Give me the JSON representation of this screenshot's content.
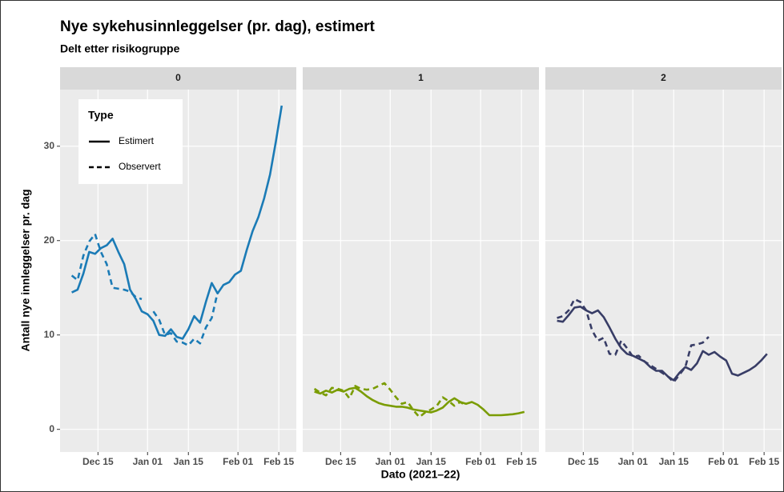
{
  "chart_data": {
    "type": "line",
    "title": "Nye sykehusinnleggelser (pr. dag), estimert",
    "subtitle": "Delt etter risikogruppe",
    "x_label": "Dato (2021–22)",
    "y_label": "Antall nye innleggelser pr. dag",
    "legend_title": "Type",
    "grid": true,
    "xlim": [
      "2021-12-02",
      "2022-02-21"
    ],
    "xticks": [
      {
        "value": "2021-12-15",
        "label": "Dec 15"
      },
      {
        "value": "2022-01-01",
        "label": "Jan 01"
      },
      {
        "value": "2022-01-15",
        "label": "Jan 15"
      },
      {
        "value": "2022-02-01",
        "label": "Feb 01"
      },
      {
        "value": "2022-02-15",
        "label": "Feb 15"
      }
    ],
    "ylim": [
      -2.4,
      36
    ],
    "yticks": [
      0,
      10,
      20,
      30
    ],
    "x": [
      "2021-12-06",
      "2021-12-08",
      "2021-12-10",
      "2021-12-12",
      "2021-12-14",
      "2021-12-16",
      "2021-12-18",
      "2021-12-20",
      "2021-12-22",
      "2021-12-24",
      "2021-12-26",
      "2021-12-28",
      "2021-12-30",
      "2022-01-01",
      "2022-01-03",
      "2022-01-05",
      "2022-01-07",
      "2022-01-09",
      "2022-01-11",
      "2022-01-13",
      "2022-01-15",
      "2022-01-17",
      "2022-01-19",
      "2022-01-21",
      "2022-01-23",
      "2022-01-25",
      "2022-01-27",
      "2022-01-29",
      "2022-01-31",
      "2022-02-02",
      "2022-02-04",
      "2022-02-06",
      "2022-02-08",
      "2022-02-10",
      "2022-02-12",
      "2022-02-14",
      "2022-02-16"
    ],
    "facets": [
      {
        "label": "0",
        "color": "#1b7bb6",
        "series": [
          {
            "name": "Estimert",
            "linestyle": "solid",
            "values": [
              14.5,
              14.8,
              16.5,
              18.8,
              18.6,
              19.2,
              19.5,
              20.2,
              18.8,
              17.5,
              14.8,
              13.8,
              12.5,
              12.2,
              11.5,
              10,
              9.9,
              10.6,
              9.8,
              9.6,
              10.6,
              12,
              11.3,
              13.5,
              15.5,
              14.4,
              15.3,
              15.6,
              16.4,
              16.8,
              19,
              21,
              22.5,
              24.5,
              27,
              30.5,
              34.3
            ]
          },
          {
            "name": "Observert",
            "linestyle": "dashed",
            "values": [
              16.3,
              15.8,
              18.4,
              19.9,
              20.7,
              18.8,
              17.5,
              15,
              14.9,
              14.8,
              14.6,
              14,
              13.8,
              null,
              12.5,
              11.6,
              10,
              10.2,
              9.3,
              9.2,
              8.9,
              9.6,
              9.1,
              10.8,
              11.8,
              14.5,
              null,
              null,
              null,
              null,
              null,
              null,
              null,
              null,
              null,
              null,
              null
            ]
          }
        ]
      },
      {
        "label": "1",
        "color": "#7a9c02",
        "series": [
          {
            "name": "Estimert",
            "linestyle": "solid",
            "values": [
              4.0,
              3.8,
              4.1,
              3.9,
              4.2,
              4.0,
              4.3,
              4.4,
              4.0,
              3.5,
              3.1,
              2.8,
              2.6,
              2.5,
              2.4,
              2.4,
              2.3,
              2.1,
              2.0,
              1.9,
              1.8,
              2.0,
              2.3,
              2.9,
              3.3,
              2.9,
              2.7,
              2.9,
              2.6,
              2.1,
              1.5,
              1.5,
              1.5,
              1.55,
              1.6,
              1.7,
              1.85
            ]
          },
          {
            "name": "Observert",
            "linestyle": "dashed",
            "values": [
              4.3,
              3.9,
              3.6,
              4.4,
              4.3,
              4.1,
              3.3,
              4.6,
              4.3,
              4.2,
              4.3,
              4.6,
              4.9,
              4.2,
              3.4,
              2.7,
              2.9,
              2.0,
              1.3,
              1.8,
              2.1,
              2.5,
              3.4,
              3.0,
              2.5,
              2.9,
              2.5,
              null,
              null,
              null,
              null,
              null,
              null,
              null,
              null,
              null,
              null
            ]
          }
        ]
      },
      {
        "label": "2",
        "color": "#383d66",
        "series": [
          {
            "name": "Estimert",
            "linestyle": "solid",
            "values": [
              11.5,
              11.4,
              12.1,
              12.9,
              13.0,
              12.6,
              12.3,
              12.6,
              11.9,
              10.8,
              9.6,
              8.6,
              8.0,
              7.8,
              7.5,
              7.2,
              6.6,
              6.2,
              6.2,
              5.6,
              5.2,
              6.0,
              6.6,
              6.3,
              7.0,
              8.3,
              7.9,
              8.2,
              7.7,
              7.3,
              5.9,
              5.7,
              6.0,
              6.3,
              6.7,
              7.3,
              8.0
            ]
          },
          {
            "name": "Observert",
            "linestyle": "dashed",
            "values": [
              11.8,
              12.0,
              12.6,
              13.8,
              13.5,
              12.6,
              10.5,
              9.4,
              9.7,
              8.0,
              7.9,
              9.4,
              8.6,
              7.7,
              7.8,
              7.2,
              6.8,
              6.4,
              6.0,
              5.6,
              5.0,
              5.8,
              6.6,
              8.9,
              9.0,
              9.2,
              9.8,
              null,
              null,
              null,
              null,
              null,
              null,
              null,
              null,
              null,
              null
            ]
          }
        ]
      }
    ]
  }
}
